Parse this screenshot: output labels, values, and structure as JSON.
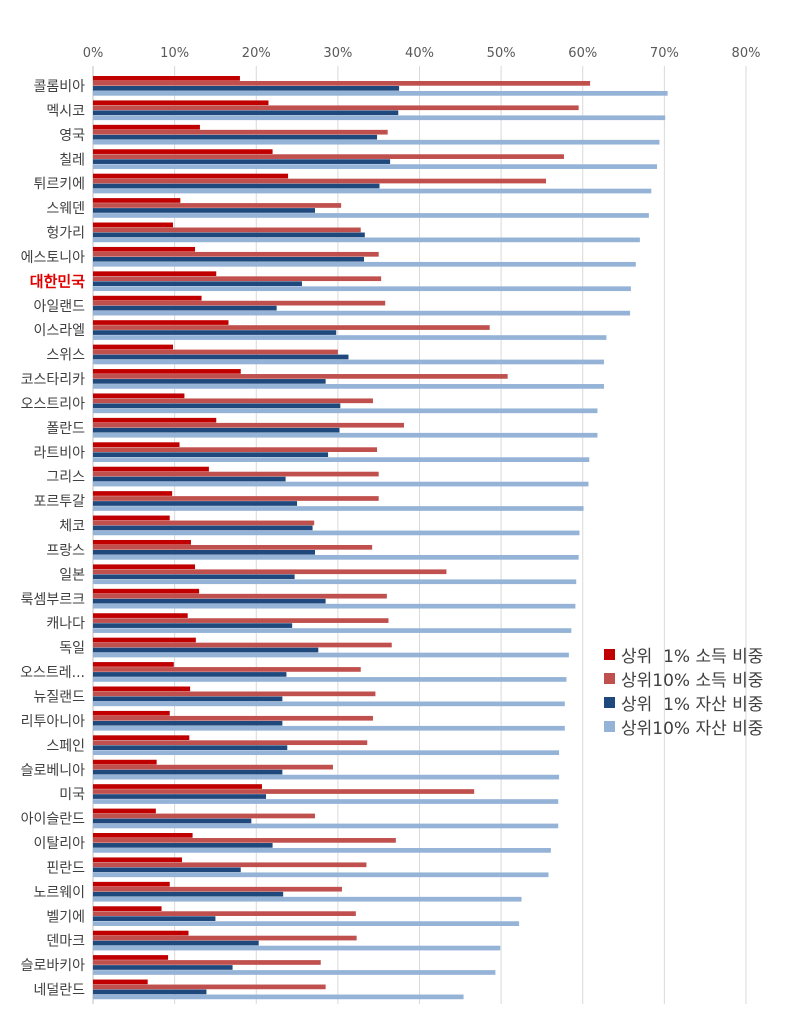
{
  "chart_data": {
    "type": "bar",
    "orientation": "horizontal",
    "title": "",
    "xlabel": "",
    "ylabel": "",
    "xlim": [
      0,
      80
    ],
    "x_ticks": [
      "0%",
      "10%",
      "20%",
      "30%",
      "40%",
      "50%",
      "60%",
      "70%",
      "80%"
    ],
    "grid": true,
    "legend_position": "right",
    "highlight_category": "대한민국",
    "highlight_color": "#e00000",
    "categories": [
      "콜롬비아",
      "멕시코",
      "영국",
      "칠레",
      "튀르키에",
      "스웨덴",
      "헝가리",
      "에스토니아",
      "대한민국",
      "아일랜드",
      "이스라엘",
      "스위스",
      "코스타리카",
      "오스트리아",
      "폴란드",
      "라트비아",
      "그리스",
      "포르투갈",
      "체코",
      "프랑스",
      "일본",
      "룩셈부르크",
      "캐나다",
      "독일",
      "오스트레...",
      "뉴질랜드",
      "리투아니아",
      "스페인",
      "슬로베니아",
      "미국",
      "아이슬란드",
      "이탈리아",
      "핀란드",
      "노르웨이",
      "벨기에",
      "덴마크",
      "슬로바키아",
      "네덜란드"
    ],
    "series": [
      {
        "name": "상위  1% 소득 비중",
        "color": "#c00000",
        "values": [
          18.0,
          21.5,
          13.1,
          22.0,
          23.9,
          10.7,
          9.8,
          12.5,
          15.1,
          13.3,
          16.6,
          9.8,
          18.1,
          11.2,
          15.1,
          10.6,
          14.2,
          9.7,
          9.4,
          12.0,
          12.5,
          13.0,
          11.6,
          12.6,
          9.9,
          11.9,
          9.4,
          11.8,
          7.8,
          20.7,
          7.7,
          12.2,
          10.9,
          9.4,
          8.4,
          11.7,
          9.2,
          6.7
        ]
      },
      {
        "name": "상위10% 소득 비중",
        "color": "#c0504d",
        "values": [
          60.9,
          59.5,
          36.1,
          57.7,
          55.5,
          30.4,
          32.8,
          35.0,
          35.3,
          35.8,
          48.6,
          30.0,
          50.8,
          34.3,
          38.1,
          34.8,
          35.0,
          35.0,
          27.1,
          34.2,
          43.3,
          36.0,
          36.2,
          36.6,
          32.8,
          34.6,
          34.3,
          33.6,
          29.4,
          46.7,
          27.2,
          37.1,
          33.5,
          30.5,
          32.2,
          32.3,
          27.9,
          28.5
        ]
      },
      {
        "name": "상위  1% 자산 비중",
        "color": "#1f497d",
        "values": [
          37.5,
          37.4,
          34.8,
          36.4,
          35.1,
          27.2,
          33.3,
          33.2,
          25.6,
          22.5,
          29.8,
          31.3,
          28.5,
          30.3,
          30.2,
          28.8,
          23.6,
          25.0,
          26.9,
          27.2,
          24.7,
          28.5,
          24.4,
          27.6,
          23.7,
          23.2,
          23.2,
          23.8,
          23.2,
          21.2,
          19.4,
          22.0,
          18.1,
          23.3,
          15.0,
          20.3,
          17.1,
          13.9
        ]
      },
      {
        "name": "상위10% 자산 비중",
        "color": "#95b3d7",
        "values": [
          70.4,
          70.1,
          69.4,
          69.1,
          68.4,
          68.1,
          67.0,
          66.5,
          65.9,
          65.8,
          62.9,
          62.6,
          62.6,
          61.8,
          61.8,
          60.8,
          60.7,
          60.1,
          59.6,
          59.5,
          59.2,
          59.1,
          58.6,
          58.3,
          58.0,
          57.8,
          57.8,
          57.1,
          57.1,
          57.0,
          57.0,
          56.1,
          55.8,
          52.5,
          52.2,
          49.9,
          49.3,
          45.4
        ]
      }
    ]
  }
}
